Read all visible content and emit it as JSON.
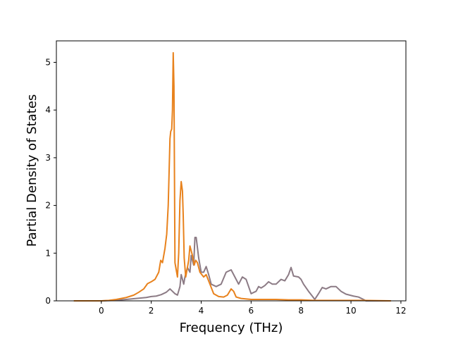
{
  "chart_data": {
    "type": "line",
    "title": "",
    "xlabel": "Frequency (THz)",
    "ylabel": "Partial Density of States",
    "xlim": [
      -1.8,
      12.2
    ],
    "ylim": [
      0,
      5.45
    ],
    "xticks": [
      0,
      2,
      4,
      6,
      8,
      10,
      12
    ],
    "yticks": [
      0,
      1,
      2,
      3,
      4,
      5
    ],
    "grid": false,
    "legend": "none",
    "series": [
      {
        "color": "#8c7b85",
        "points": [
          [
            -1.1,
            0.0
          ],
          [
            0.0,
            0.0
          ],
          [
            0.5,
            0.01
          ],
          [
            1.0,
            0.03
          ],
          [
            1.4,
            0.05
          ],
          [
            1.8,
            0.07
          ],
          [
            2.0,
            0.09
          ],
          [
            2.2,
            0.1
          ],
          [
            2.4,
            0.13
          ],
          [
            2.6,
            0.18
          ],
          [
            2.75,
            0.25
          ],
          [
            2.85,
            0.2
          ],
          [
            2.95,
            0.15
          ],
          [
            3.05,
            0.12
          ],
          [
            3.15,
            0.3
          ],
          [
            3.2,
            0.55
          ],
          [
            3.3,
            0.35
          ],
          [
            3.35,
            0.5
          ],
          [
            3.45,
            0.7
          ],
          [
            3.55,
            0.6
          ],
          [
            3.6,
            0.95
          ],
          [
            3.7,
            0.75
          ],
          [
            3.75,
            1.33
          ],
          [
            3.8,
            1.33
          ],
          [
            3.9,
            0.9
          ],
          [
            4.0,
            0.6
          ],
          [
            4.1,
            0.6
          ],
          [
            4.2,
            0.72
          ],
          [
            4.3,
            0.55
          ],
          [
            4.4,
            0.35
          ],
          [
            4.6,
            0.3
          ],
          [
            4.8,
            0.35
          ],
          [
            5.0,
            0.6
          ],
          [
            5.2,
            0.65
          ],
          [
            5.3,
            0.55
          ],
          [
            5.5,
            0.35
          ],
          [
            5.65,
            0.5
          ],
          [
            5.8,
            0.45
          ],
          [
            6.0,
            0.15
          ],
          [
            6.2,
            0.2
          ],
          [
            6.3,
            0.3
          ],
          [
            6.4,
            0.27
          ],
          [
            6.55,
            0.32
          ],
          [
            6.7,
            0.4
          ],
          [
            6.85,
            0.35
          ],
          [
            7.0,
            0.35
          ],
          [
            7.2,
            0.45
          ],
          [
            7.35,
            0.42
          ],
          [
            7.5,
            0.55
          ],
          [
            7.6,
            0.7
          ],
          [
            7.7,
            0.52
          ],
          [
            7.9,
            0.5
          ],
          [
            8.0,
            0.45
          ],
          [
            8.1,
            0.35
          ],
          [
            8.3,
            0.2
          ],
          [
            8.45,
            0.1
          ],
          [
            8.55,
            0.03
          ],
          [
            8.7,
            0.15
          ],
          [
            8.85,
            0.28
          ],
          [
            9.0,
            0.25
          ],
          [
            9.2,
            0.3
          ],
          [
            9.4,
            0.3
          ],
          [
            9.6,
            0.2
          ],
          [
            9.8,
            0.14
          ],
          [
            10.1,
            0.1
          ],
          [
            10.3,
            0.08
          ],
          [
            10.5,
            0.03
          ],
          [
            10.6,
            0.0
          ],
          [
            11.6,
            0.0
          ]
        ]
      },
      {
        "color": "#e8821d",
        "points": [
          [
            -1.1,
            0.0
          ],
          [
            0.0,
            0.0
          ],
          [
            0.3,
            0.01
          ],
          [
            0.6,
            0.03
          ],
          [
            1.0,
            0.07
          ],
          [
            1.3,
            0.12
          ],
          [
            1.5,
            0.18
          ],
          [
            1.7,
            0.25
          ],
          [
            1.85,
            0.36
          ],
          [
            2.0,
            0.4
          ],
          [
            2.15,
            0.45
          ],
          [
            2.3,
            0.6
          ],
          [
            2.38,
            0.85
          ],
          [
            2.45,
            0.8
          ],
          [
            2.55,
            1.1
          ],
          [
            2.62,
            1.4
          ],
          [
            2.68,
            2.0
          ],
          [
            2.72,
            2.8
          ],
          [
            2.75,
            3.4
          ],
          [
            2.78,
            3.55
          ],
          [
            2.82,
            3.6
          ],
          [
            2.85,
            4.0
          ],
          [
            2.88,
            5.2
          ],
          [
            2.91,
            4.5
          ],
          [
            2.95,
            0.8
          ],
          [
            3.0,
            0.65
          ],
          [
            3.05,
            0.5
          ],
          [
            3.1,
            1.0
          ],
          [
            3.15,
            2.1
          ],
          [
            3.2,
            2.5
          ],
          [
            3.25,
            2.3
          ],
          [
            3.28,
            1.8
          ],
          [
            3.32,
            0.9
          ],
          [
            3.38,
            0.5
          ],
          [
            3.45,
            0.7
          ],
          [
            3.5,
            0.85
          ],
          [
            3.55,
            1.15
          ],
          [
            3.6,
            1.05
          ],
          [
            3.65,
            0.95
          ],
          [
            3.72,
            0.75
          ],
          [
            3.78,
            0.85
          ],
          [
            3.85,
            0.8
          ],
          [
            3.95,
            0.6
          ],
          [
            4.1,
            0.5
          ],
          [
            4.2,
            0.55
          ],
          [
            4.35,
            0.35
          ],
          [
            4.5,
            0.15
          ],
          [
            4.7,
            0.09
          ],
          [
            4.9,
            0.08
          ],
          [
            5.05,
            0.12
          ],
          [
            5.2,
            0.25
          ],
          [
            5.3,
            0.2
          ],
          [
            5.4,
            0.08
          ],
          [
            5.6,
            0.05
          ],
          [
            6.0,
            0.03
          ],
          [
            6.5,
            0.03
          ],
          [
            7.0,
            0.03
          ],
          [
            7.5,
            0.02
          ],
          [
            8.0,
            0.02
          ],
          [
            8.5,
            0.01
          ],
          [
            9.0,
            0.01
          ],
          [
            9.5,
            0.01
          ],
          [
            10.0,
            0.01
          ],
          [
            10.5,
            0.01
          ],
          [
            11.6,
            0.0
          ]
        ]
      }
    ]
  }
}
